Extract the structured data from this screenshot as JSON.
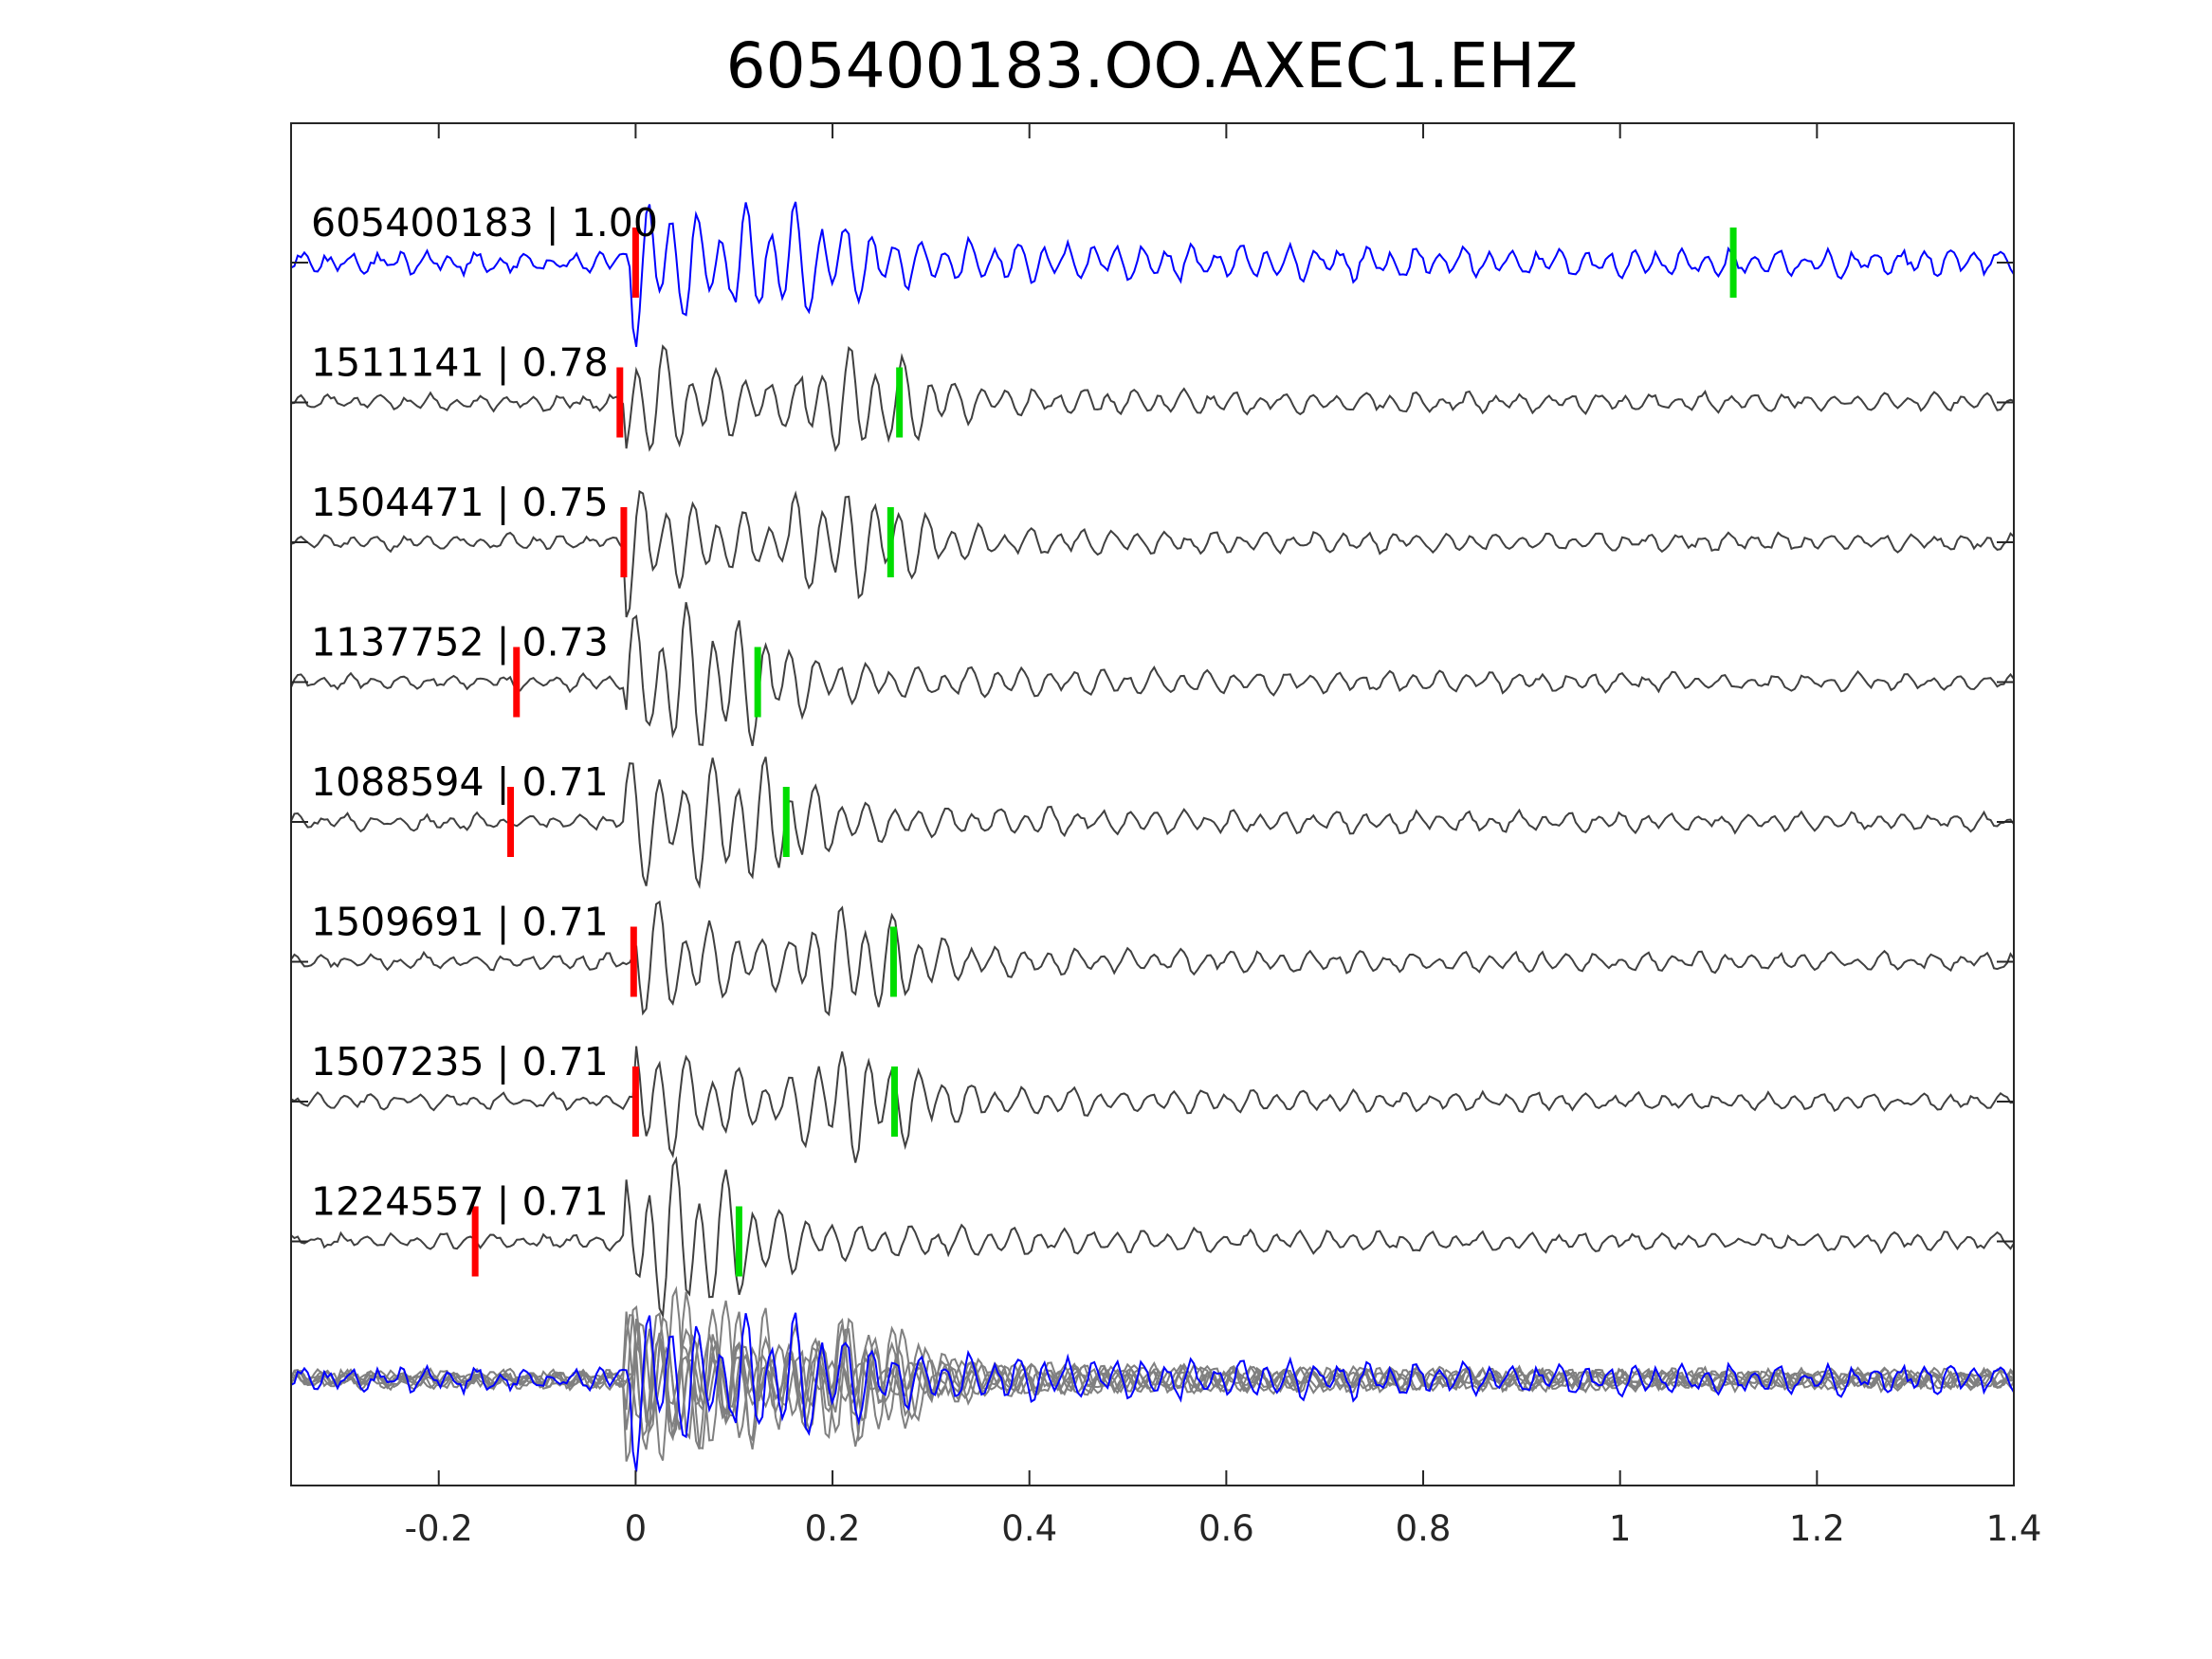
{
  "chart_data": {
    "type": "line",
    "title": "605400183.OO.AXEC1.EHZ",
    "xlabel": "",
    "ylabel": "",
    "xlim": [
      -0.35,
      1.4
    ],
    "xticks": [
      -0.2,
      0,
      0.2,
      0.4,
      0.6,
      0.8,
      1,
      1.2,
      1.4
    ],
    "xtick_labels": [
      "-0.2",
      "0",
      "0.2",
      "0.4",
      "0.6",
      "0.8",
      "1",
      "1.2",
      "1.4"
    ],
    "grid": false,
    "legend": "none",
    "colors": {
      "template": "#0000ff",
      "match": "#404040",
      "stack": "#808080",
      "p_pick": "#ff0000",
      "s_pick": "#00dd00",
      "axes": "#262626"
    },
    "traces": [
      {
        "label": "605400183 | 1.00",
        "id": "605400183",
        "cc": "1.00",
        "p_pick": 0.0,
        "s_pick": 1.115,
        "template": true
      },
      {
        "label": "1511141 | 0.78",
        "id": "1511141",
        "cc": "0.78",
        "p_pick": -0.016,
        "s_pick": 0.268,
        "template": false
      },
      {
        "label": "1504471 | 0.75",
        "id": "1504471",
        "cc": "0.75",
        "p_pick": -0.012,
        "s_pick": 0.259,
        "template": false
      },
      {
        "label": "1137752 | 0.73",
        "id": "1137752",
        "cc": "0.73",
        "p_pick": -0.121,
        "s_pick": 0.124,
        "template": false
      },
      {
        "label": "1088594 | 0.71",
        "id": "1088594",
        "cc": "0.71",
        "p_pick": -0.127,
        "s_pick": 0.153,
        "template": false
      },
      {
        "label": "1509691 | 0.71",
        "id": "1509691",
        "cc": "0.71",
        "p_pick": -0.002,
        "s_pick": 0.262,
        "template": false
      },
      {
        "label": "1507235 | 0.71",
        "id": "1507235",
        "cc": "0.71",
        "p_pick": 0.0,
        "s_pick": 0.263,
        "template": false
      },
      {
        "label": "1224557 | 0.71",
        "id": "1224557",
        "cc": "0.71",
        "p_pick": -0.163,
        "s_pick": 0.105,
        "template": false
      }
    ],
    "stack": {
      "present": true
    }
  }
}
